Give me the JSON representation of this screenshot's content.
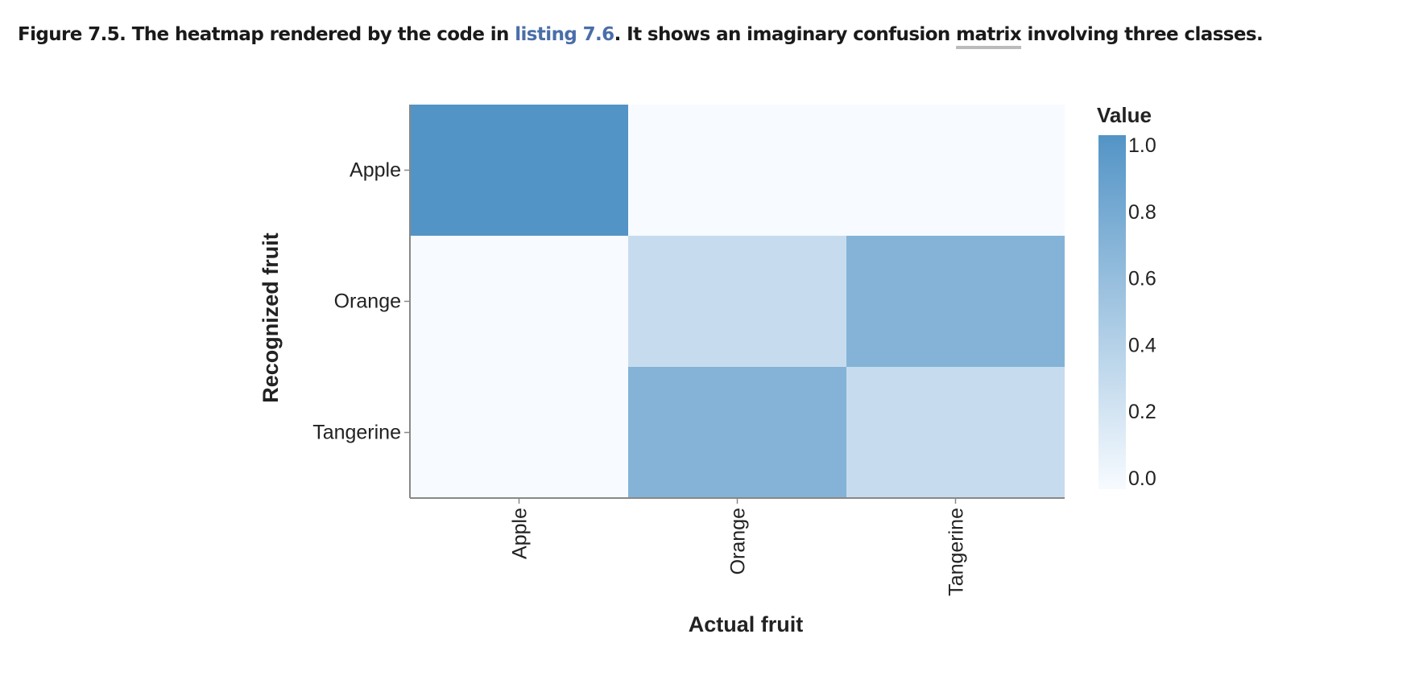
{
  "caption": {
    "figure_label": "Figure 7.5.",
    "text_before_link": "The heatmap rendered by the code in",
    "link_text": "listing 7.6",
    "text_after_link": ". It shows an imaginary confusion",
    "underlined_word": "matrix",
    "text_end": "involving three classes."
  },
  "chart_data": {
    "type": "heatmap",
    "title": "",
    "xlabel": "Actual fruit",
    "ylabel": "Recognized fruit",
    "x_categories": [
      "Apple",
      "Orange",
      "Tangerine"
    ],
    "y_categories": [
      "Apple",
      "Orange",
      "Tangerine"
    ],
    "values": [
      [
        1.0,
        0.0,
        0.0
      ],
      [
        0.0,
        0.3,
        0.7
      ],
      [
        0.0,
        0.7,
        0.3
      ]
    ],
    "legend": {
      "title": "Value",
      "ticks": [
        "1.0",
        "0.8",
        "0.6",
        "0.4",
        "0.2",
        "0.0"
      ],
      "placement": "right",
      "min": 0.0,
      "max": 1.0
    },
    "colors": {
      "low": "#f7fbff",
      "high": "#5394c6"
    }
  }
}
